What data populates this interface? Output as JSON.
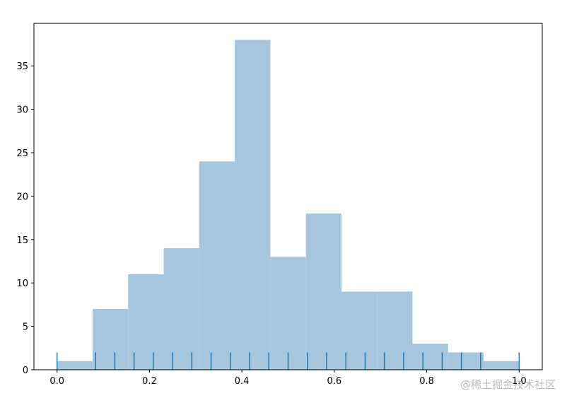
{
  "chart_data": {
    "type": "histogram",
    "bins": [
      0,
      0.0769,
      0.1538,
      0.2308,
      0.3077,
      0.3846,
      0.4615,
      0.5385,
      0.6154,
      0.6923,
      0.7692,
      0.8462,
      0.9231,
      1
    ],
    "counts": [
      1,
      7,
      11,
      14,
      24,
      38,
      13,
      18,
      9,
      9,
      3,
      2,
      1
    ],
    "color": "#a6c6de",
    "rug": [
      0,
      0.0833,
      0.125,
      0.1667,
      0.2083,
      0.25,
      0.2917,
      0.3333,
      0.375,
      0.4167,
      0.4583,
      0.5,
      0.5417,
      0.5833,
      0.625,
      0.6667,
      0.7083,
      0.75,
      0.7917,
      0.8333,
      0.875,
      0.9167,
      1
    ],
    "rug_color": "#1f77b4",
    "xlim": [
      -0.05,
      1.05
    ],
    "ylim": [
      0,
      39.9
    ],
    "xticks": [
      {
        "value": 0,
        "label": "0.0"
      },
      {
        "value": 0.2,
        "label": "0.2"
      },
      {
        "value": 0.4,
        "label": "0.4"
      },
      {
        "value": 0.6,
        "label": "0.6"
      },
      {
        "value": 0.8,
        "label": "0.8"
      },
      {
        "value": 1,
        "label": "1.0"
      }
    ],
    "yticks": [
      0,
      5,
      10,
      15,
      20,
      25,
      30,
      35
    ],
    "watermark": "@稀土掘金技术社区"
  }
}
